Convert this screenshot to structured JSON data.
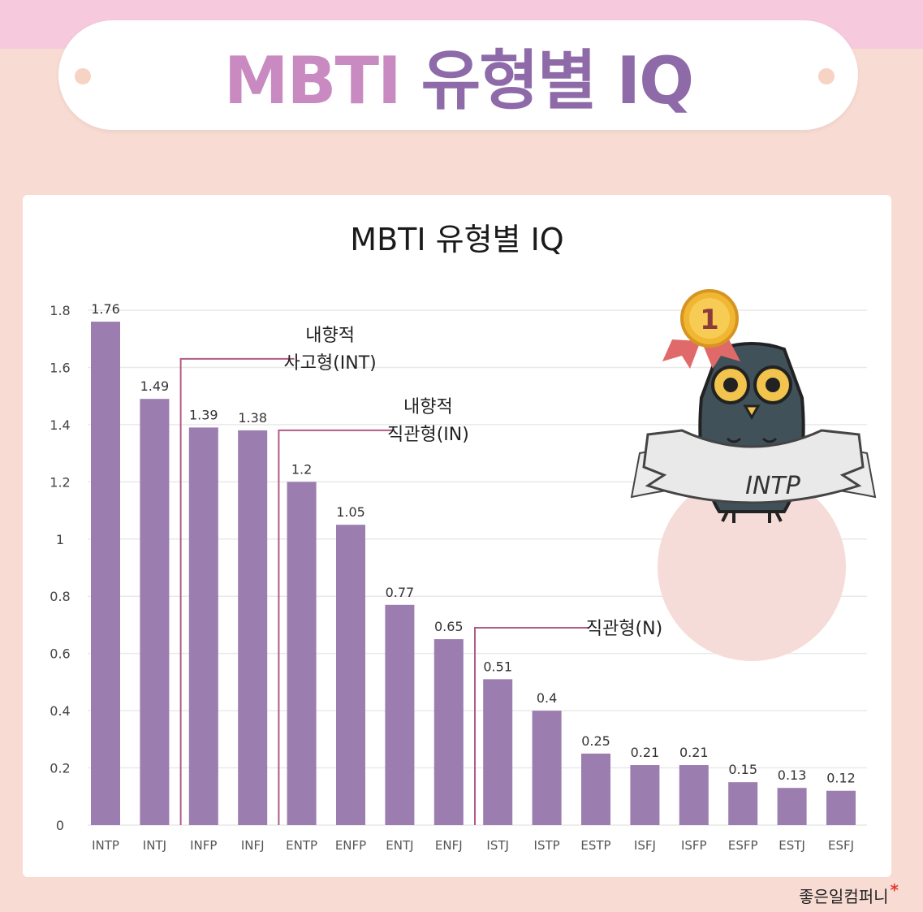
{
  "banner": {
    "title_part1": "MBTI",
    "title_part2": "유형별 IQ"
  },
  "footer": {
    "brand": "좋은일컴퍼니",
    "star": "*"
  },
  "badge": {
    "rank": "1",
    "type_label": "INTP"
  },
  "colors": {
    "bar": "#9b7db0",
    "bracket": "#b15b86",
    "grid": "#e9e9e9"
  },
  "chart_data": {
    "type": "bar",
    "title": "MBTI 유형별 IQ",
    "categories": [
      "INTP",
      "INTJ",
      "INFP",
      "INFJ",
      "ENTP",
      "ENFP",
      "ENTJ",
      "ENFJ",
      "ISTJ",
      "ISTP",
      "ESTP",
      "ISFJ",
      "ISFP",
      "ESFP",
      "ESTJ",
      "ESFJ"
    ],
    "values": [
      1.76,
      1.49,
      1.39,
      1.38,
      1.2,
      1.05,
      0.77,
      0.65,
      0.51,
      0.4,
      0.25,
      0.21,
      0.21,
      0.15,
      0.13,
      0.12
    ],
    "value_labels": [
      "1.76",
      "1.49",
      "1.39",
      "1.38",
      "1.2",
      "1.05",
      "0.77",
      "0.65",
      "0.51",
      "0.4",
      "0.25",
      "0.21",
      "0.21",
      "0.15",
      "0.13",
      "0.12"
    ],
    "yticks": [
      "0",
      "0.2",
      "0.4",
      "0.6",
      "0.8",
      "1",
      "1.2",
      "1.4",
      "1.6",
      "1.8"
    ],
    "ylim": [
      0,
      1.8
    ],
    "grid": true,
    "annotations": [
      {
        "lines": [
          "내향적",
          "사고형(INT)"
        ],
        "from_category": "INFP",
        "level": 1.63
      },
      {
        "lines": [
          "내향적",
          "직관형(IN)"
        ],
        "from_category": "ENTP",
        "level": 1.38
      },
      {
        "lines": [
          "직관형(N)"
        ],
        "from_category": "ISTJ",
        "level": 0.69
      }
    ]
  }
}
